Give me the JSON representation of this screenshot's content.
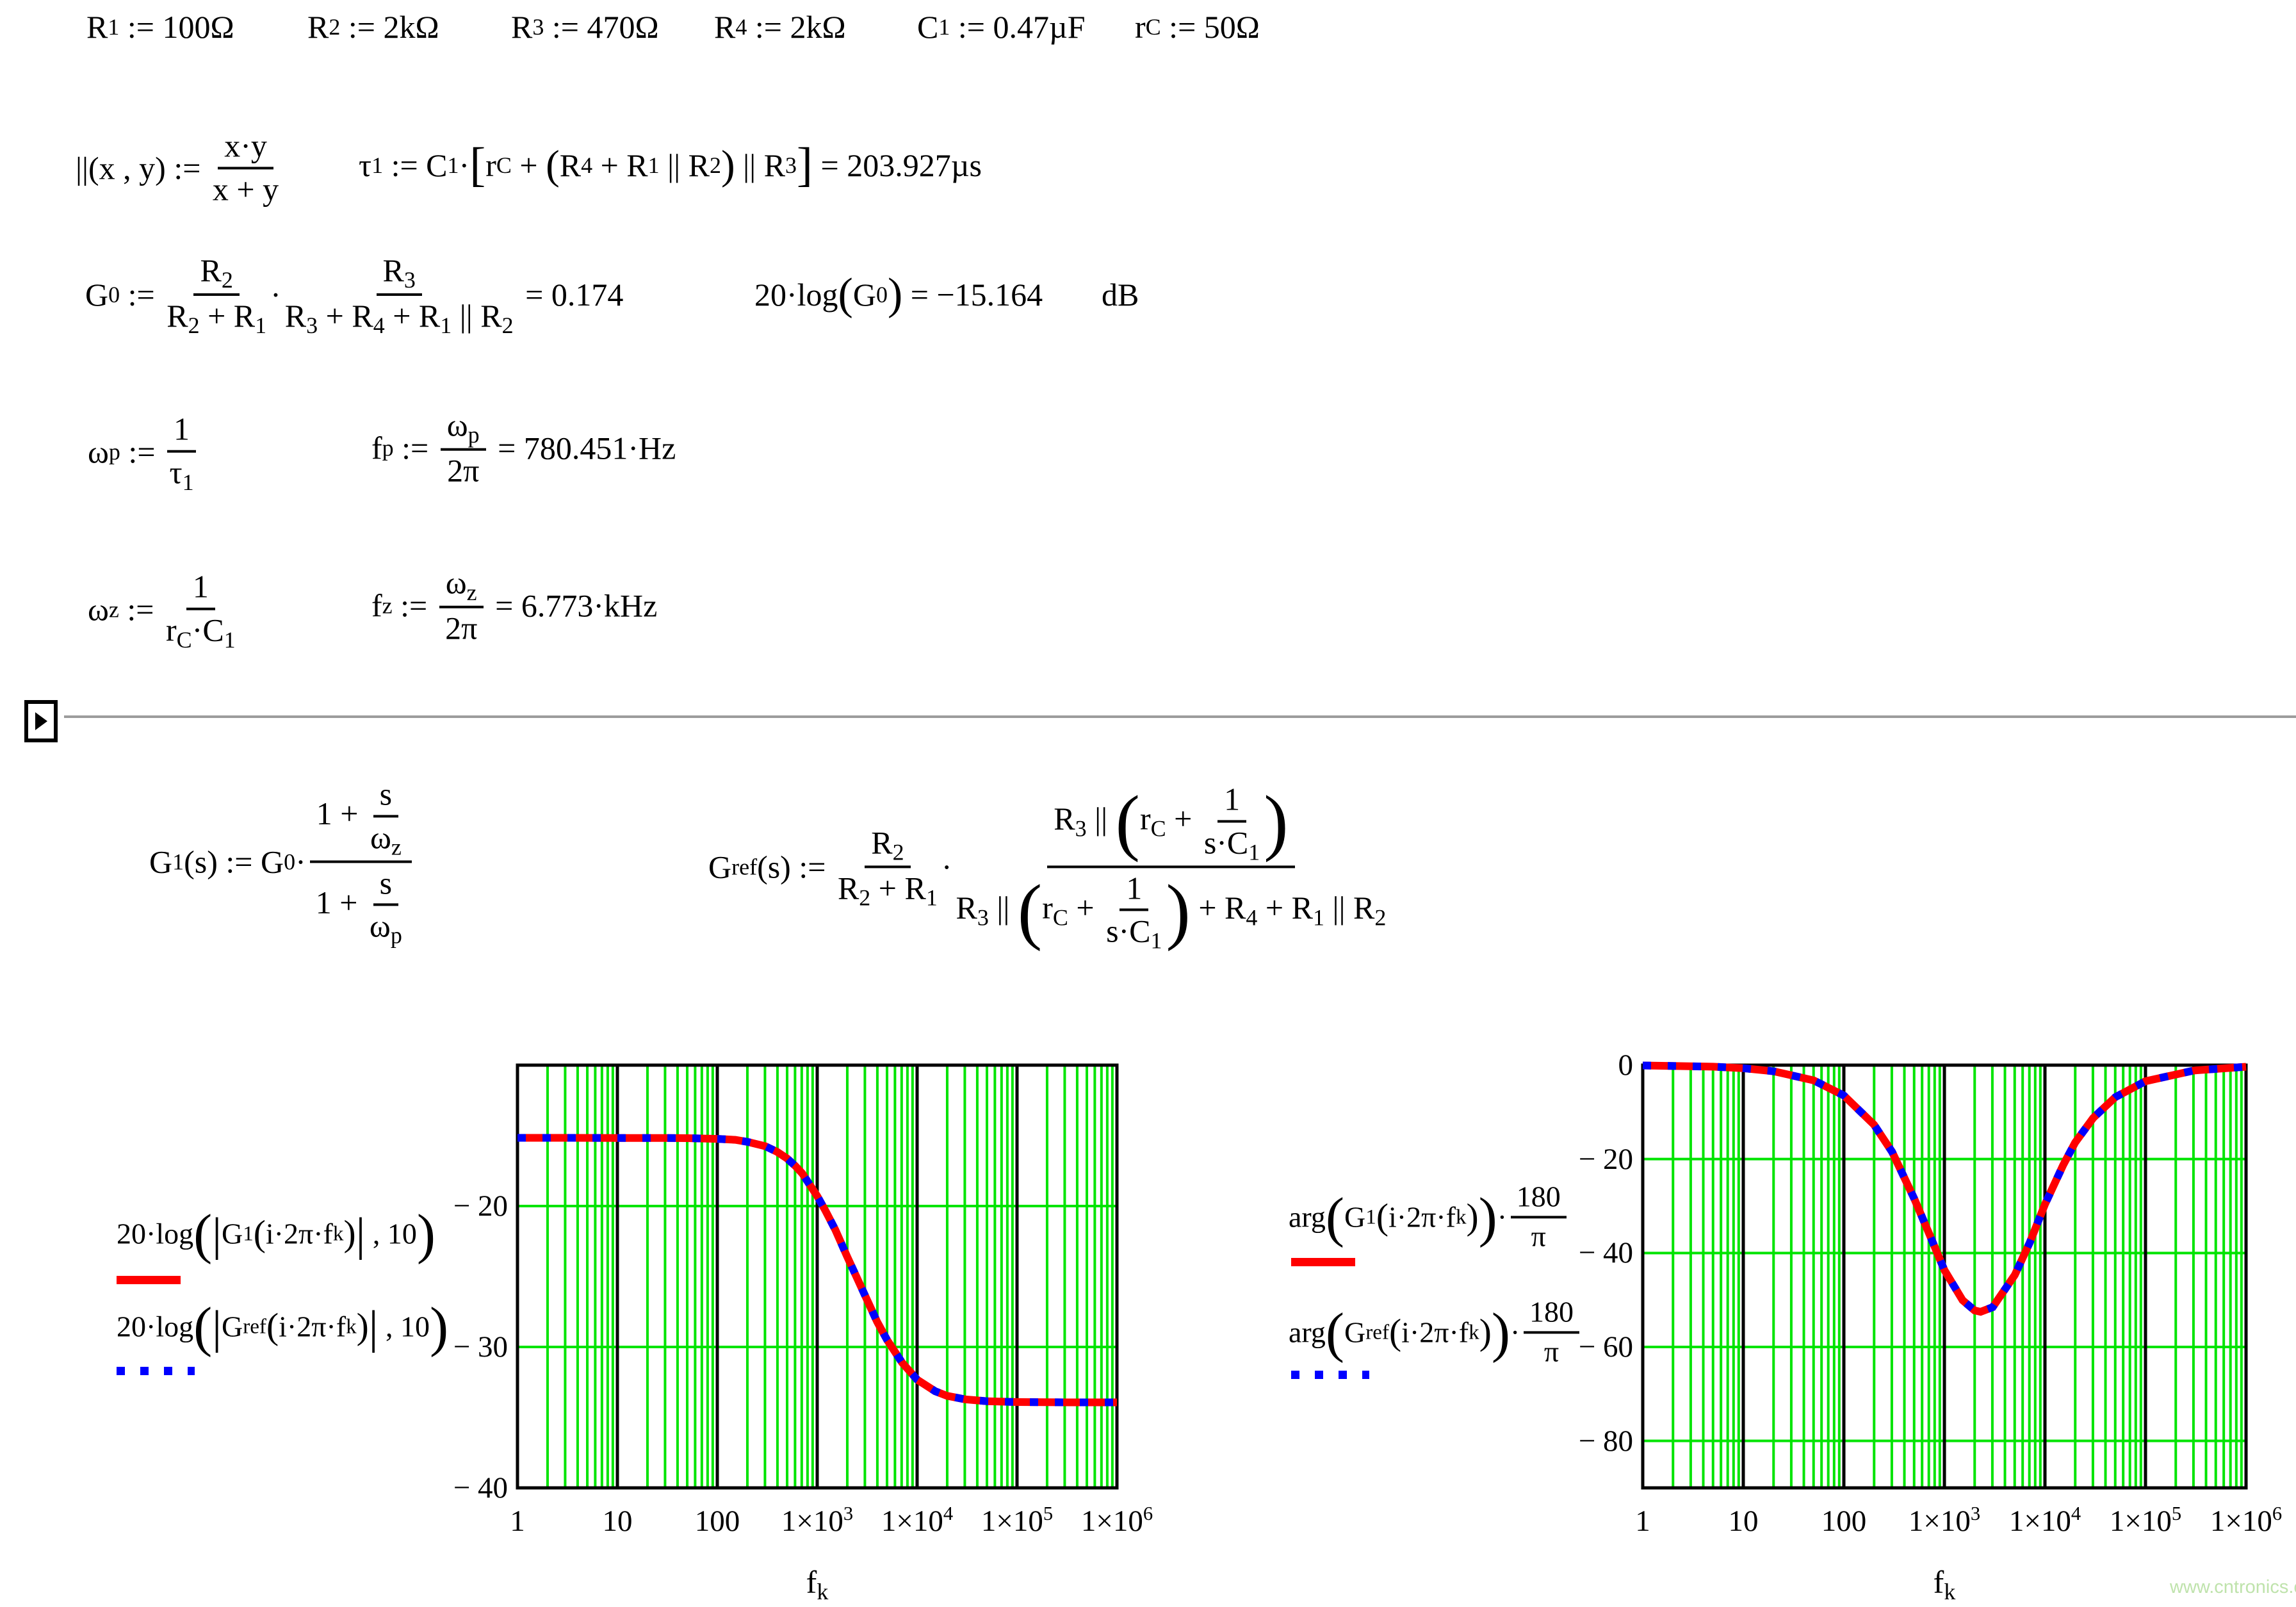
{
  "app": {
    "kind": "mathcad-worksheet"
  },
  "watermark": "www.cntronics.com",
  "colors": {
    "curve_red": "#ff0000",
    "curve_blue": "#0000ff",
    "grid_green": "#00e400",
    "grid_black": "#000000",
    "collapse_line_gray": "#9c9c9c",
    "watermark_green": "#bfe3ac",
    "background": "#ffffff"
  },
  "definitions": [
    {
      "tokens": [
        "R",
        {
          "sub": "1"
        },
        " := 100Ω"
      ]
    },
    {
      "tokens": [
        "R",
        {
          "sub": "2"
        },
        " := 2kΩ"
      ]
    },
    {
      "tokens": [
        "R",
        {
          "sub": "3"
        },
        " := 470Ω"
      ]
    },
    {
      "tokens": [
        "R",
        {
          "sub": "4"
        },
        " := 2kΩ"
      ]
    },
    {
      "tokens": [
        "C",
        {
          "sub": "1"
        },
        " := 0.47µF"
      ]
    },
    {
      "tokens": [
        "r",
        {
          "sub": "C"
        },
        " := 50Ω"
      ]
    }
  ],
  "eq_parallel": [
    "||(x , y) := ",
    {
      "frac": [
        [
          "x·y"
        ],
        [
          "x + y"
        ]
      ]
    }
  ],
  "eq_tau": [
    "τ",
    {
      "sub": "1"
    },
    " := C",
    {
      "sub": "1"
    },
    "·",
    {
      "big": "[",
      "s": 1.5
    },
    "r",
    {
      "sub": "C"
    },
    " + ",
    {
      "big": "(",
      "s": 1.3
    },
    "R",
    {
      "sub": "4"
    },
    " + R",
    {
      "sub": "1"
    },
    " || R",
    {
      "sub": "2"
    },
    {
      "big": ")",
      "s": 1.3
    },
    " || R",
    {
      "sub": "3"
    },
    {
      "big": "]",
      "s": 1.5
    },
    " = 203.927µs"
  ],
  "eq_g0": [
    "G",
    {
      "sub": "0"
    },
    " := ",
    {
      "frac": [
        [
          "R",
          {
            "sub": "2"
          }
        ],
        [
          "R",
          {
            "sub": "2"
          },
          " + R",
          {
            "sub": "1"
          }
        ]
      ]
    },
    "·",
    {
      "frac": [
        [
          "R",
          {
            "sub": "3"
          }
        ],
        [
          "R",
          {
            "sub": "3"
          },
          " + R",
          {
            "sub": "4"
          },
          " + R",
          {
            "sub": "1"
          },
          " || R",
          {
            "sub": "2"
          }
        ]
      ]
    },
    " = 0.174"
  ],
  "eq_g0db": [
    "20·log",
    {
      "big": "(",
      "s": 1.4
    },
    "G",
    {
      "sub": "0"
    },
    {
      "big": ")",
      "s": 1.4
    },
    " = −15.164"
  ],
  "eq_db": [
    "dB"
  ],
  "eq_wp": [
    "ω",
    {
      "sub": "p"
    },
    " := ",
    {
      "frac": [
        [
          "1"
        ],
        [
          "τ",
          {
            "sub": "1"
          }
        ]
      ]
    }
  ],
  "eq_fp": [
    "f",
    {
      "sub": "p"
    },
    " := ",
    {
      "frac": [
        [
          "ω",
          {
            "sub": "p"
          }
        ],
        [
          "2π"
        ]
      ]
    },
    " = 780.451·Hz"
  ],
  "eq_wz": [
    "ω",
    {
      "sub": "z"
    },
    " := ",
    {
      "frac": [
        [
          "1"
        ],
        [
          "r",
          {
            "sub": "C"
          },
          "·C",
          {
            "sub": "1"
          }
        ]
      ]
    }
  ],
  "eq_fz": [
    "f",
    {
      "sub": "z"
    },
    " := ",
    {
      "frac": [
        [
          "ω",
          {
            "sub": "z"
          }
        ],
        [
          "2π"
        ]
      ]
    },
    " = 6.773·kHz"
  ],
  "eq_g1": [
    "G",
    {
      "sub": "1"
    },
    "(s) := G",
    {
      "sub": "0"
    },
    "·",
    {
      "frac": [
        [
          "1 + ",
          {
            "frac": [
              [
                "s"
              ],
              [
                "ω",
                {
                  "sub": "z"
                }
              ]
            ]
          }
        ],
        [
          "1 + ",
          {
            "frac": [
              [
                "s"
              ],
              [
                "ω",
                {
                  "sub": "p"
                }
              ]
            ]
          }
        ]
      ]
    }
  ],
  "eq_gref": [
    "G",
    {
      "sub": "ref"
    },
    "(s) := ",
    {
      "frac": [
        [
          "R",
          {
            "sub": "2"
          }
        ],
        [
          "R",
          {
            "sub": "2"
          },
          " + R",
          {
            "sub": "1"
          }
        ]
      ]
    },
    "·",
    {
      "frac": [
        [
          "R",
          {
            "sub": "3"
          },
          " || ",
          {
            "big": "(",
            "s": 2.3
          },
          "r",
          {
            "sub": "C"
          },
          " + ",
          {
            "frac": [
              [
                "1"
              ],
              [
                "s·C",
                {
                  "sub": "1"
                }
              ]
            ]
          },
          {
            "big": ")",
            "s": 2.3
          }
        ],
        [
          "R",
          {
            "sub": "3"
          },
          " || ",
          {
            "big": "(",
            "s": 2.3
          },
          "r",
          {
            "sub": "C"
          },
          " + ",
          {
            "frac": [
              [
                "1"
              ],
              [
                "s·C",
                {
                  "sub": "1"
                }
              ]
            ]
          },
          {
            "big": ")",
            "s": 2.3
          },
          " + R",
          {
            "sub": "4"
          },
          " + R",
          {
            "sub": "1"
          },
          " || R",
          {
            "sub": "2"
          }
        ]
      ]
    }
  ],
  "legend_mag_1": [
    "20·log",
    {
      "big": "(",
      "s": 1.9
    },
    {
      "big": "|",
      "s": 1.6
    },
    "G",
    {
      "sub": "1"
    },
    {
      "big": "(",
      "s": 1.25
    },
    "i·2π·f",
    {
      "sub": "k"
    },
    {
      "big": ")",
      "s": 1.25
    },
    {
      "big": "|",
      "s": 1.6
    },
    " , 10",
    {
      "big": ")",
      "s": 1.9
    }
  ],
  "legend_mag_2": [
    "20·log",
    {
      "big": "(",
      "s": 1.9
    },
    {
      "big": "|",
      "s": 1.6
    },
    "G",
    {
      "sub": "ref"
    },
    {
      "big": "(",
      "s": 1.25
    },
    "i·2π·f",
    {
      "sub": "k"
    },
    {
      "big": ")",
      "s": 1.25
    },
    {
      "big": "|",
      "s": 1.6
    },
    " , 10",
    {
      "big": ")",
      "s": 1.9
    }
  ],
  "legend_ph_1": [
    "arg",
    {
      "big": "(",
      "s": 1.9
    },
    "G",
    {
      "sub": "1"
    },
    {
      "big": "(",
      "s": 1.25
    },
    "i·2π·f",
    {
      "sub": "k"
    },
    {
      "big": ")",
      "s": 1.25
    },
    {
      "big": ")",
      "s": 1.9
    },
    "·",
    {
      "frac": [
        [
          "180"
        ],
        [
          "π"
        ]
      ]
    }
  ],
  "legend_ph_2": [
    "arg",
    {
      "big": "(",
      "s": 1.9
    },
    "G",
    {
      "sub": "ref"
    },
    {
      "big": "(",
      "s": 1.25
    },
    "i·2π·f",
    {
      "sub": "k"
    },
    {
      "big": ")",
      "s": 1.25
    },
    {
      "big": ")",
      "s": 1.9
    },
    "·",
    {
      "frac": [
        [
          "180"
        ],
        [
          "π"
        ]
      ]
    }
  ],
  "chart_data": [
    {
      "name": "magnitude-bode-plot",
      "type": "line",
      "x_scale": "log",
      "x_range": [
        1,
        1000000
      ],
      "y_range": [
        -40,
        -10
      ],
      "grid": true,
      "y_gridlines": [
        -20,
        -30
      ],
      "y_tick_labels": [
        {
          "v": -20,
          "t": [
            "− 20"
          ]
        },
        {
          "v": -30,
          "t": [
            "− 30"
          ]
        },
        {
          "v": -40,
          "t": [
            "− 40"
          ]
        }
      ],
      "x_tick_labels": [
        {
          "logv": 0,
          "t": [
            "1"
          ]
        },
        {
          "logv": 1,
          "t": [
            "10"
          ]
        },
        {
          "logv": 2,
          "t": [
            "100"
          ]
        },
        {
          "logv": 3,
          "t": [
            "1×10",
            {
              "sup": "3"
            }
          ]
        },
        {
          "logv": 4,
          "t": [
            "1×10",
            {
              "sup": "4"
            }
          ]
        },
        {
          "logv": 5,
          "t": [
            "1×10",
            {
              "sup": "5"
            }
          ]
        },
        {
          "logv": 6,
          "t": [
            "1×10",
            {
              "sup": "6"
            }
          ]
        }
      ],
      "xlabel": [
        "f",
        {
          "sub": "k"
        }
      ],
      "series": [
        {
          "name": "20·log(|G1(i·2π·fk)|,10)",
          "color": "#ff0000",
          "style": "solid",
          "points": [
            [
              0,
              -15.16
            ],
            [
              0.5,
              -15.16
            ],
            [
              1,
              -15.17
            ],
            [
              1.5,
              -15.17
            ],
            [
              1.7,
              -15.18
            ],
            [
              2,
              -15.23
            ],
            [
              2.18,
              -15.3
            ],
            [
              2.3,
              -15.44
            ],
            [
              2.48,
              -15.75
            ],
            [
              2.6,
              -16.16
            ],
            [
              2.7,
              -16.63
            ],
            [
              2.78,
              -17.15
            ],
            [
              2.85,
              -17.68
            ],
            [
              2.9,
              -18.22
            ],
            [
              3,
              -19.29
            ],
            [
              3.08,
              -20.3
            ],
            [
              3.18,
              -21.67
            ],
            [
              3.3,
              -23.59
            ],
            [
              3.4,
              -25.13
            ],
            [
              3.48,
              -26.37
            ],
            [
              3.6,
              -28.22
            ],
            [
              3.7,
              -29.51
            ],
            [
              3.85,
              -31.12
            ],
            [
              4,
              -32.32
            ],
            [
              4.18,
              -33.14
            ],
            [
              4.3,
              -33.47
            ],
            [
              4.48,
              -33.72
            ],
            [
              4.7,
              -33.85
            ],
            [
              5,
              -33.91
            ],
            [
              5.5,
              -33.93
            ],
            [
              6,
              -33.93
            ]
          ]
        },
        {
          "name": "20·log(|Gref(i·2π·fk)|,10)",
          "color": "#0000ff",
          "style": "dashed",
          "points": [
            [
              0,
              -15.16
            ],
            [
              0.5,
              -15.16
            ],
            [
              1,
              -15.17
            ],
            [
              1.5,
              -15.17
            ],
            [
              1.7,
              -15.18
            ],
            [
              2,
              -15.23
            ],
            [
              2.18,
              -15.3
            ],
            [
              2.3,
              -15.44
            ],
            [
              2.48,
              -15.75
            ],
            [
              2.6,
              -16.16
            ],
            [
              2.7,
              -16.63
            ],
            [
              2.78,
              -17.15
            ],
            [
              2.85,
              -17.68
            ],
            [
              2.9,
              -18.22
            ],
            [
              3,
              -19.29
            ],
            [
              3.08,
              -20.3
            ],
            [
              3.18,
              -21.67
            ],
            [
              3.3,
              -23.59
            ],
            [
              3.4,
              -25.13
            ],
            [
              3.48,
              -26.37
            ],
            [
              3.6,
              -28.22
            ],
            [
              3.7,
              -29.51
            ],
            [
              3.85,
              -31.12
            ],
            [
              4,
              -32.32
            ],
            [
              4.18,
              -33.14
            ],
            [
              4.3,
              -33.47
            ],
            [
              4.48,
              -33.72
            ],
            [
              4.7,
              -33.85
            ],
            [
              5,
              -33.91
            ],
            [
              5.5,
              -33.93
            ],
            [
              6,
              -33.93
            ]
          ]
        }
      ]
    },
    {
      "name": "phase-bode-plot",
      "type": "line",
      "x_scale": "log",
      "x_range": [
        1,
        1000000
      ],
      "y_range": [
        -90,
        0
      ],
      "grid": true,
      "y_gridlines": [
        -20,
        -40,
        -60,
        -80
      ],
      "y_tick_labels": [
        {
          "v": 0,
          "t": [
            "0"
          ]
        },
        {
          "v": -20,
          "t": [
            "− 20"
          ]
        },
        {
          "v": -40,
          "t": [
            "− 40"
          ]
        },
        {
          "v": -60,
          "t": [
            "− 60"
          ]
        },
        {
          "v": -80,
          "t": [
            "− 80"
          ]
        }
      ],
      "x_tick_labels": [
        {
          "logv": 0,
          "t": [
            "1"
          ]
        },
        {
          "logv": 1,
          "t": [
            "10"
          ]
        },
        {
          "logv": 2,
          "t": [
            "100"
          ]
        },
        {
          "logv": 3,
          "t": [
            "1×10",
            {
              "sup": "3"
            }
          ]
        },
        {
          "logv": 4,
          "t": [
            "1×10",
            {
              "sup": "4"
            }
          ]
        },
        {
          "logv": 5,
          "t": [
            "1×10",
            {
              "sup": "5"
            }
          ]
        },
        {
          "logv": 6,
          "t": [
            "1×10",
            {
              "sup": "6"
            }
          ]
        }
      ],
      "xlabel": [
        "f",
        {
          "sub": "k"
        }
      ],
      "series": [
        {
          "name": "arg(G1(i·2π·fk))·180/π",
          "color": "#ff0000",
          "style": "solid",
          "points": [
            [
              0,
              -0.07
            ],
            [
              0.7,
              -0.33
            ],
            [
              1,
              -0.65
            ],
            [
              1.3,
              -1.3
            ],
            [
              1.7,
              -3.24
            ],
            [
              2,
              -6.46
            ],
            [
              2.3,
              -12.68
            ],
            [
              2.48,
              -18.48
            ],
            [
              2.7,
              -28.42
            ],
            [
              2.85,
              -35.99
            ],
            [
              3,
              -43.63
            ],
            [
              3.18,
              -50.03
            ],
            [
              3.3,
              -52.23
            ],
            [
              3.36,
              -52.51
            ],
            [
              3.48,
              -51.53
            ],
            [
              3.7,
              -44.69
            ],
            [
              3.85,
              -37.7
            ],
            [
              4,
              -29.65
            ],
            [
              4.18,
              -21.32
            ],
            [
              4.3,
              -16.48
            ],
            [
              4.48,
              -11.23
            ],
            [
              4.7,
              -6.82
            ],
            [
              5,
              -3.42
            ],
            [
              5.48,
              -1.14
            ],
            [
              6,
              -0.34
            ]
          ]
        },
        {
          "name": "arg(Gref(i·2π·fk))·180/π",
          "color": "#0000ff",
          "style": "dashed",
          "points": [
            [
              0,
              -0.07
            ],
            [
              0.7,
              -0.33
            ],
            [
              1,
              -0.65
            ],
            [
              1.3,
              -1.3
            ],
            [
              1.7,
              -3.24
            ],
            [
              2,
              -6.46
            ],
            [
              2.3,
              -12.68
            ],
            [
              2.48,
              -18.48
            ],
            [
              2.7,
              -28.42
            ],
            [
              2.85,
              -35.99
            ],
            [
              3,
              -43.63
            ],
            [
              3.18,
              -50.03
            ],
            [
              3.3,
              -52.23
            ],
            [
              3.36,
              -52.51
            ],
            [
              3.48,
              -51.53
            ],
            [
              3.7,
              -44.69
            ],
            [
              3.85,
              -37.7
            ],
            [
              4,
              -29.65
            ],
            [
              4.18,
              -21.32
            ],
            [
              4.3,
              -16.48
            ],
            [
              4.48,
              -11.23
            ],
            [
              4.7,
              -6.82
            ],
            [
              5,
              -3.42
            ],
            [
              5.48,
              -1.14
            ],
            [
              6,
              -0.34
            ]
          ]
        }
      ]
    }
  ]
}
